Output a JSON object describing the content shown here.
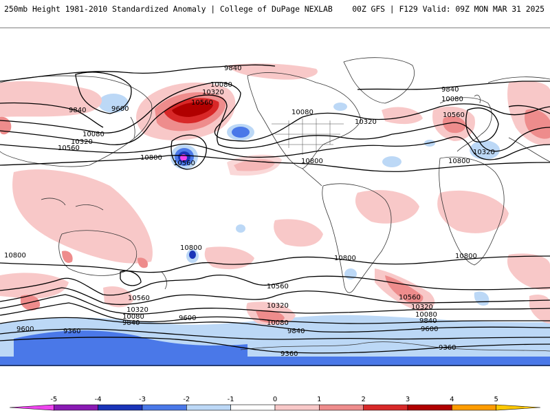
{
  "header": {
    "title_left": "250mb Height 1981-2010 Standardized Anomaly | College of DuPage NEXLAB",
    "title_right": "00Z GFS | F129 Valid: 09Z MON MAR 31 2025"
  },
  "colorbar": {
    "ticks": [
      "-5",
      "-4",
      "-3",
      "-2",
      "-1",
      "0",
      "1",
      "2",
      "3",
      "4",
      "5"
    ],
    "colors": [
      "#ee44ee",
      "#8a1ab4",
      "#1a34b8",
      "#4a78e8",
      "#bcd8f6",
      "#ffffff",
      "#f8c8c8",
      "#ee8c8c",
      "#d82828",
      "#b00000",
      "#ff9c00",
      "#ffc800"
    ]
  },
  "contours": {
    "labels": [
      {
        "text": "9840"
      },
      {
        "text": "9600"
      },
      {
        "text": "10080"
      },
      {
        "text": "10320"
      },
      {
        "text": "10560"
      },
      {
        "text": "10800"
      },
      {
        "text": "10080"
      },
      {
        "text": "10320"
      },
      {
        "text": "10560"
      },
      {
        "text": "10560"
      },
      {
        "text": "10080"
      },
      {
        "text": "10320"
      },
      {
        "text": "10800"
      },
      {
        "text": "10800"
      },
      {
        "text": "9840"
      },
      {
        "text": "10080"
      },
      {
        "text": "10560"
      },
      {
        "text": "10320"
      },
      {
        "text": "10800"
      },
      {
        "text": "10800"
      },
      {
        "text": "10800"
      },
      {
        "text": "10800"
      },
      {
        "text": "10560"
      },
      {
        "text": "10560"
      },
      {
        "text": "10320"
      },
      {
        "text": "10080"
      },
      {
        "text": "9840"
      },
      {
        "text": "9600"
      },
      {
        "text": "9600"
      },
      {
        "text": "9360"
      },
      {
        "text": "9360"
      },
      {
        "text": "9360"
      },
      {
        "text": "10560"
      },
      {
        "text": "10320"
      },
      {
        "text": "10080"
      },
      {
        "text": "9840"
      },
      {
        "text": "10560"
      },
      {
        "text": "10320"
      },
      {
        "text": "10080"
      },
      {
        "text": "9840"
      },
      {
        "text": "9600"
      },
      {
        "text": "9840"
      }
    ]
  }
}
